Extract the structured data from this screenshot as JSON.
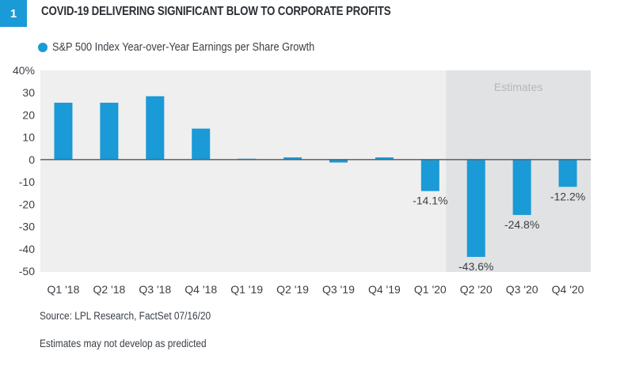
{
  "header": {
    "figure_number": "1",
    "title": "COVID-19 DELIVERING SIGNIFICANT BLOW TO CORPORATE PROFITS"
  },
  "footer": {
    "source": "Source: LPL Research, FactSet   07/16/20",
    "note": "Estimates may not develop as predicted"
  },
  "colors": {
    "bar": "#1a9ad6",
    "plot_bg": "#efefef",
    "estimates_bg": "#e1e2e3",
    "zero_line": "#5a5f64",
    "badge": "#1a9ad6"
  },
  "chart_data": {
    "type": "bar",
    "title": "COVID-19 DELIVERING SIGNIFICANT BLOW TO CORPORATE PROFITS",
    "legend": [
      "S&P 500 Index Year-over-Year Earnings per Share Growth"
    ],
    "legend_position": "top-left",
    "categories": [
      "Q1 '18",
      "Q2 '18",
      "Q3 '18",
      "Q4 '18",
      "Q1 '19",
      "Q2 '19",
      "Q3 '19",
      "Q4 '19",
      "Q1 '20",
      "Q2 '20",
      "Q3 '20",
      "Q4 '20"
    ],
    "series": [
      {
        "name": "S&P 500 Index Year-over-Year Earnings per Share Growth",
        "values": [
          25.5,
          25.5,
          28.4,
          13.9,
          0.4,
          1.0,
          -1.3,
          1.0,
          -14.1,
          -43.6,
          -24.8,
          -12.2
        ]
      }
    ],
    "data_labels": [
      {
        "category": "Q1 '20",
        "text": "-14.1%"
      },
      {
        "category": "Q2 '20",
        "text": "-43.6%"
      },
      {
        "category": "Q3 '20",
        "text": "-24.8%"
      },
      {
        "category": "Q4 '20",
        "text": "-12.2%"
      }
    ],
    "shaded_region": {
      "label": "Estimates",
      "from": "Q2 '20",
      "to": "Q4 '20"
    },
    "yticks": [
      40,
      30,
      20,
      10,
      0,
      -10,
      -20,
      -30,
      -40,
      -50
    ],
    "ytick_labels": [
      "40%",
      "30",
      "20",
      "10",
      "0",
      "-10",
      "-20",
      "-30",
      "-40",
      "-50"
    ],
    "xlabel": "",
    "ylabel": "",
    "ylim": [
      -50,
      40
    ],
    "grid": false
  }
}
